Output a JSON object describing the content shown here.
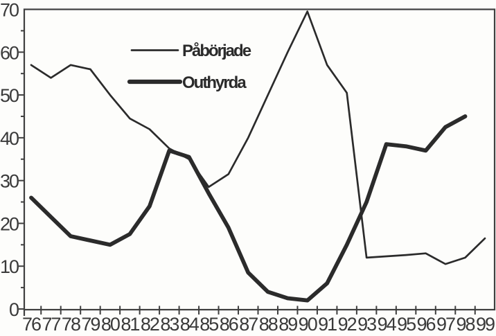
{
  "figure": {
    "background": "#fdfdfb",
    "line_color": "#2b2b2b",
    "frame_color": "#3f3f3f",
    "text_color": "#3a3a3a"
  },
  "chart_data": {
    "type": "line",
    "x": [
      "76",
      "77",
      "78",
      "79",
      "80",
      "81",
      "82",
      "83",
      "84",
      "85",
      "86",
      "87",
      "88",
      "89",
      "90",
      "91",
      "92",
      "93",
      "94",
      "95",
      "96",
      "97",
      "98",
      "99"
    ],
    "series": [
      {
        "name": "Påbörjade",
        "style": "thin",
        "values": [
          57,
          54,
          57,
          56,
          50,
          44.5,
          42,
          37.5,
          35,
          28.5,
          31.5,
          40,
          50,
          60,
          69.5,
          57,
          50.5,
          12,
          12.3,
          12.6,
          13,
          10.5,
          12,
          16.5
        ]
      },
      {
        "name": "Outhyrda",
        "style": "thick",
        "values": [
          26,
          21.5,
          17,
          16,
          15,
          17.5,
          24,
          37,
          35.5,
          27,
          19,
          8.5,
          4,
          2.5,
          2,
          6,
          15,
          25,
          38.5,
          38,
          37,
          42.5,
          45,
          null
        ]
      }
    ],
    "ylim": [
      0,
      70
    ],
    "yticks": [
      0,
      10,
      20,
      30,
      40,
      50,
      60,
      70
    ],
    "y_minor_tick_step": 5,
    "grid": false,
    "legend_position": "upper-center-left"
  }
}
